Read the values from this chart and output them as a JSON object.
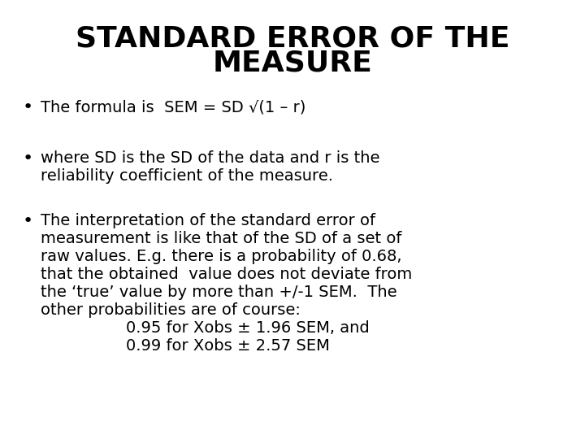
{
  "title_line1": "STANDARD ERROR OF THE",
  "title_line2": "MEASURE",
  "bullet1": "The formula is  SEM = SD √(1 – r)",
  "bullet2_line1": "where SD is the SD of the data and r is the",
  "bullet2_line2": "reliability coefficient of the measure.",
  "bullet3_line1": "The interpretation of the standard error of",
  "bullet3_line2": "measurement is like that of the SD of a set of",
  "bullet3_line3": "raw values. E.g. there is a probability of 0.68,",
  "bullet3_line4": "that the obtained  value does not deviate from",
  "bullet3_line5": "the ‘true’ value by more than +/-1 SEM.  The",
  "bullet3_line6": "other probabilities are of course:",
  "bullet3_indent1": "0.95 for Xobs ± 1.96 SEM, and",
  "bullet3_indent2": "0.99 for Xobs ± 2.57 SEM",
  "bg_color": "#ffffff",
  "text_color": "#000000",
  "title_fontsize": 26,
  "body_fontsize": 14,
  "bullet_fontsize": 16,
  "font_family": "DejaVu Sans Condensed",
  "title_fontweight": "bold",
  "body_fontweight": "normal"
}
